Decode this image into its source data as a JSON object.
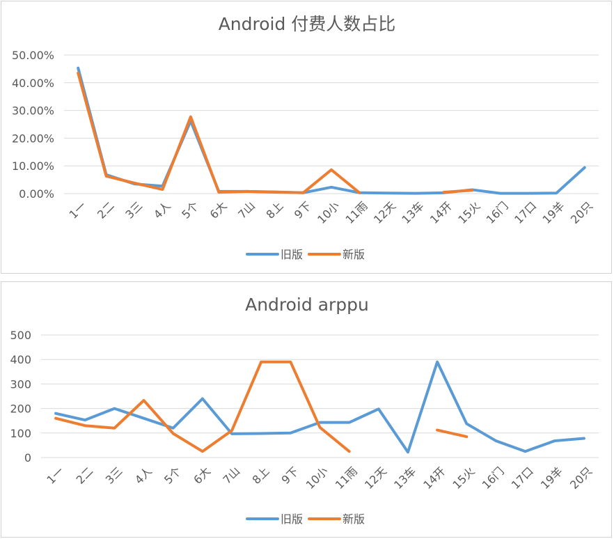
{
  "categories": [
    "1一",
    "2二",
    "3三",
    "4人",
    "5个",
    "6大",
    "7山",
    "8上",
    "9下",
    "10小",
    "11雨",
    "12天",
    "13车",
    "14开",
    "15火",
    "16门",
    "17口",
    "19羊",
    "20只"
  ],
  "colors": {
    "old": "#5B9BD5",
    "new": "#ED7D31",
    "grid": "#D9D9D9",
    "text": "#595959"
  },
  "chart_data": [
    {
      "type": "line",
      "title": "Android 付费人数占比",
      "categories": [
        "1一",
        "2二",
        "3三",
        "4人",
        "5个",
        "6大",
        "7山",
        "8上",
        "9下",
        "10小",
        "11雨",
        "12天",
        "13车",
        "14开",
        "15火",
        "16门",
        "17口",
        "19羊",
        "20只"
      ],
      "y_ticks": [
        "0.00%",
        "10.00%",
        "20.00%",
        "30.00%",
        "40.00%",
        "50.00%"
      ],
      "ylim": [
        0,
        0.5
      ],
      "grid": true,
      "legend_position": "bottom",
      "series": [
        {
          "name": "旧版",
          "color": "#5B9BD5",
          "values": [
            0.453,
            0.068,
            0.035,
            0.027,
            0.262,
            0.008,
            0.008,
            0.006,
            0.003,
            0.023,
            0.003,
            0.002,
            0.001,
            0.003,
            0.014,
            0.001,
            0.001,
            0.002,
            0.094
          ]
        },
        {
          "name": "新版",
          "color": "#ED7D31",
          "values": [
            0.435,
            0.063,
            0.038,
            0.015,
            0.277,
            0.005,
            0.008,
            0.005,
            0.003,
            0.086,
            0.003,
            null,
            null,
            0.005,
            0.012,
            null,
            null,
            null,
            null
          ]
        }
      ]
    },
    {
      "type": "line",
      "title": "Android arppu",
      "categories": [
        "1一",
        "2二",
        "3三",
        "4人",
        "5个",
        "6大",
        "7山",
        "8上",
        "9下",
        "10小",
        "11雨",
        "12天",
        "13车",
        "14开",
        "15火",
        "16门",
        "17口",
        "19羊",
        "20只"
      ],
      "y_ticks": [
        "0",
        "100",
        "200",
        "300",
        "400",
        "500"
      ],
      "ylim": [
        0,
        500
      ],
      "grid": true,
      "legend_position": "bottom",
      "series": [
        {
          "name": "旧版",
          "color": "#5B9BD5",
          "values": [
            180,
            153,
            200,
            160,
            120,
            240,
            97,
            98,
            100,
            143,
            143,
            198,
            22,
            390,
            138,
            68,
            25,
            68,
            78
          ]
        },
        {
          "name": "新版",
          "color": "#ED7D31",
          "values": [
            160,
            130,
            120,
            233,
            98,
            25,
            110,
            390,
            390,
            123,
            25,
            null,
            null,
            112,
            85,
            null,
            null,
            null,
            null
          ]
        }
      ]
    }
  ]
}
